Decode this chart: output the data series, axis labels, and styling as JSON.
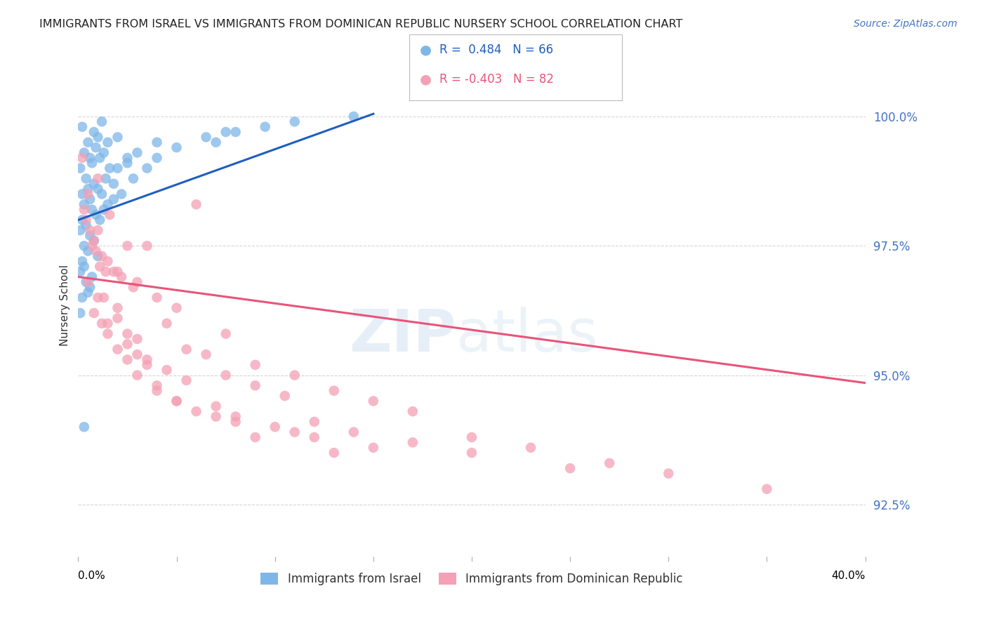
{
  "title": "IMMIGRANTS FROM ISRAEL VS IMMIGRANTS FROM DOMINICAN REPUBLIC NURSERY SCHOOL CORRELATION CHART",
  "source": "Source: ZipAtlas.com",
  "ylabel": "Nursery School",
  "y_ticks": [
    92.5,
    95.0,
    97.5,
    100.0
  ],
  "y_tick_labels": [
    "92.5%",
    "95.0%",
    "97.5%",
    "100.0%"
  ],
  "x_range": [
    0.0,
    40.0
  ],
  "y_range": [
    91.5,
    101.2
  ],
  "legend_blue_r": "0.484",
  "legend_blue_n": "66",
  "legend_pink_r": "-0.403",
  "legend_pink_n": "82",
  "blue_scatter_x": [
    0.2,
    0.5,
    0.8,
    1.0,
    1.2,
    0.3,
    0.6,
    0.9,
    1.5,
    2.0,
    0.1,
    0.4,
    0.7,
    1.1,
    1.3,
    0.2,
    0.5,
    0.8,
    1.6,
    2.5,
    0.3,
    0.6,
    1.0,
    1.4,
    3.0,
    0.2,
    0.7,
    1.2,
    2.0,
    4.0,
    0.1,
    0.4,
    0.9,
    1.8,
    5.0,
    0.3,
    0.6,
    1.1,
    2.5,
    6.5,
    0.2,
    0.5,
    0.8,
    1.5,
    7.0,
    0.1,
    0.3,
    1.3,
    3.5,
    8.0,
    0.4,
    0.7,
    1.0,
    2.2,
    9.5,
    0.2,
    0.6,
    1.8,
    4.0,
    11.0,
    0.1,
    0.5,
    2.8,
    7.5,
    14.0,
    0.3
  ],
  "blue_scatter_y": [
    99.8,
    99.5,
    99.7,
    99.6,
    99.9,
    99.3,
    99.2,
    99.4,
    99.5,
    99.6,
    99.0,
    98.8,
    99.1,
    99.2,
    99.3,
    98.5,
    98.6,
    98.7,
    99.0,
    99.2,
    98.3,
    98.4,
    98.6,
    98.8,
    99.3,
    98.0,
    98.2,
    98.5,
    99.0,
    99.5,
    97.8,
    97.9,
    98.1,
    98.7,
    99.4,
    97.5,
    97.7,
    98.0,
    99.1,
    99.6,
    97.2,
    97.4,
    97.6,
    98.3,
    99.5,
    97.0,
    97.1,
    98.2,
    99.0,
    99.7,
    96.8,
    96.9,
    97.3,
    98.5,
    99.8,
    96.5,
    96.7,
    98.4,
    99.2,
    99.9,
    96.2,
    96.6,
    98.8,
    99.7,
    100.0,
    94.0
  ],
  "pink_scatter_x": [
    0.5,
    1.0,
    1.5,
    2.0,
    2.5,
    0.3,
    0.8,
    1.2,
    1.8,
    3.0,
    0.4,
    0.7,
    1.1,
    2.2,
    4.0,
    0.6,
    0.9,
    1.4,
    2.8,
    5.0,
    0.2,
    1.0,
    1.6,
    3.5,
    6.0,
    0.5,
    1.3,
    2.0,
    4.5,
    7.5,
    0.8,
    1.5,
    2.5,
    5.5,
    9.0,
    1.0,
    2.0,
    3.0,
    6.5,
    11.0,
    1.2,
    2.5,
    3.5,
    7.5,
    13.0,
    1.5,
    3.0,
    4.5,
    9.0,
    15.0,
    2.0,
    3.5,
    5.5,
    10.5,
    17.0,
    2.5,
    4.0,
    7.0,
    12.0,
    20.0,
    3.0,
    5.0,
    8.0,
    14.0,
    23.0,
    4.0,
    6.0,
    10.0,
    17.0,
    27.0,
    5.0,
    8.0,
    12.0,
    20.0,
    30.0,
    7.0,
    11.0,
    15.0,
    25.0,
    35.0,
    9.0,
    13.0
  ],
  "pink_scatter_y": [
    98.5,
    97.8,
    97.2,
    97.0,
    97.5,
    98.2,
    97.6,
    97.3,
    97.0,
    96.8,
    98.0,
    97.5,
    97.1,
    96.9,
    96.5,
    97.8,
    97.4,
    97.0,
    96.7,
    96.3,
    99.2,
    98.8,
    98.1,
    97.5,
    98.3,
    96.8,
    96.5,
    96.3,
    96.0,
    95.8,
    96.2,
    96.0,
    95.8,
    95.5,
    95.2,
    96.5,
    96.1,
    95.7,
    95.4,
    95.0,
    96.0,
    95.6,
    95.3,
    95.0,
    94.7,
    95.8,
    95.4,
    95.1,
    94.8,
    94.5,
    95.5,
    95.2,
    94.9,
    94.6,
    94.3,
    95.3,
    94.7,
    94.4,
    94.1,
    93.8,
    95.0,
    94.5,
    94.2,
    93.9,
    93.6,
    94.8,
    94.3,
    94.0,
    93.7,
    93.3,
    94.5,
    94.1,
    93.8,
    93.5,
    93.1,
    94.2,
    93.9,
    93.6,
    93.2,
    92.8,
    93.8,
    93.5
  ],
  "blue_line_x": [
    0.0,
    15.0
  ],
  "blue_line_y": [
    98.0,
    100.05
  ],
  "pink_line_x": [
    0.0,
    40.0
  ],
  "pink_line_y": [
    96.9,
    94.85
  ],
  "scatter_size": 110,
  "blue_color": "#7EB6E8",
  "pink_color": "#F4A0B5",
  "blue_line_color": "#1F5FBF",
  "pink_line_color": "#E8547A",
  "background_color": "#FFFFFF",
  "grid_color": "#CCCCCC",
  "tick_label_color": "#4472C4"
}
